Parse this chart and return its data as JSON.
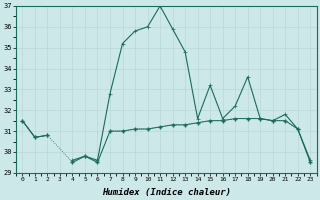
{
  "xlabel": "Humidex (Indice chaleur)",
  "x": [
    0,
    1,
    2,
    3,
    4,
    5,
    6,
    7,
    8,
    9,
    10,
    11,
    12,
    13,
    14,
    15,
    16,
    17,
    18,
    19,
    20,
    21,
    22,
    23
  ],
  "line_upper": [
    31.5,
    30.7,
    30.8,
    null,
    29.6,
    29.8,
    29.6,
    32.8,
    35.2,
    35.8,
    36.0,
    37.0,
    35.9,
    34.8,
    31.6,
    33.2,
    31.6,
    32.2,
    33.6,
    31.6,
    31.5,
    31.8,
    31.1,
    29.6
  ],
  "line_lower": [
    31.5,
    30.7,
    30.8,
    null,
    29.5,
    29.8,
    29.5,
    31.0,
    31.0,
    31.1,
    31.1,
    31.2,
    31.3,
    31.3,
    31.4,
    31.5,
    31.5,
    31.6,
    31.6,
    31.6,
    31.5,
    31.5,
    31.1,
    29.5
  ],
  "ylim": [
    29,
    37
  ],
  "xlim": [
    -0.5,
    23.5
  ],
  "yticks": [
    29,
    30,
    31,
    32,
    33,
    34,
    35,
    36,
    37
  ],
  "xticks": [
    0,
    1,
    2,
    3,
    4,
    5,
    6,
    7,
    8,
    9,
    10,
    11,
    12,
    13,
    14,
    15,
    16,
    17,
    18,
    19,
    20,
    21,
    22,
    23
  ],
  "line_color": "#1a6b5a",
  "bg_color": "#cce8e8",
  "grid_major_color": "#b8d8d8",
  "grid_minor_color": "#d4ecec"
}
